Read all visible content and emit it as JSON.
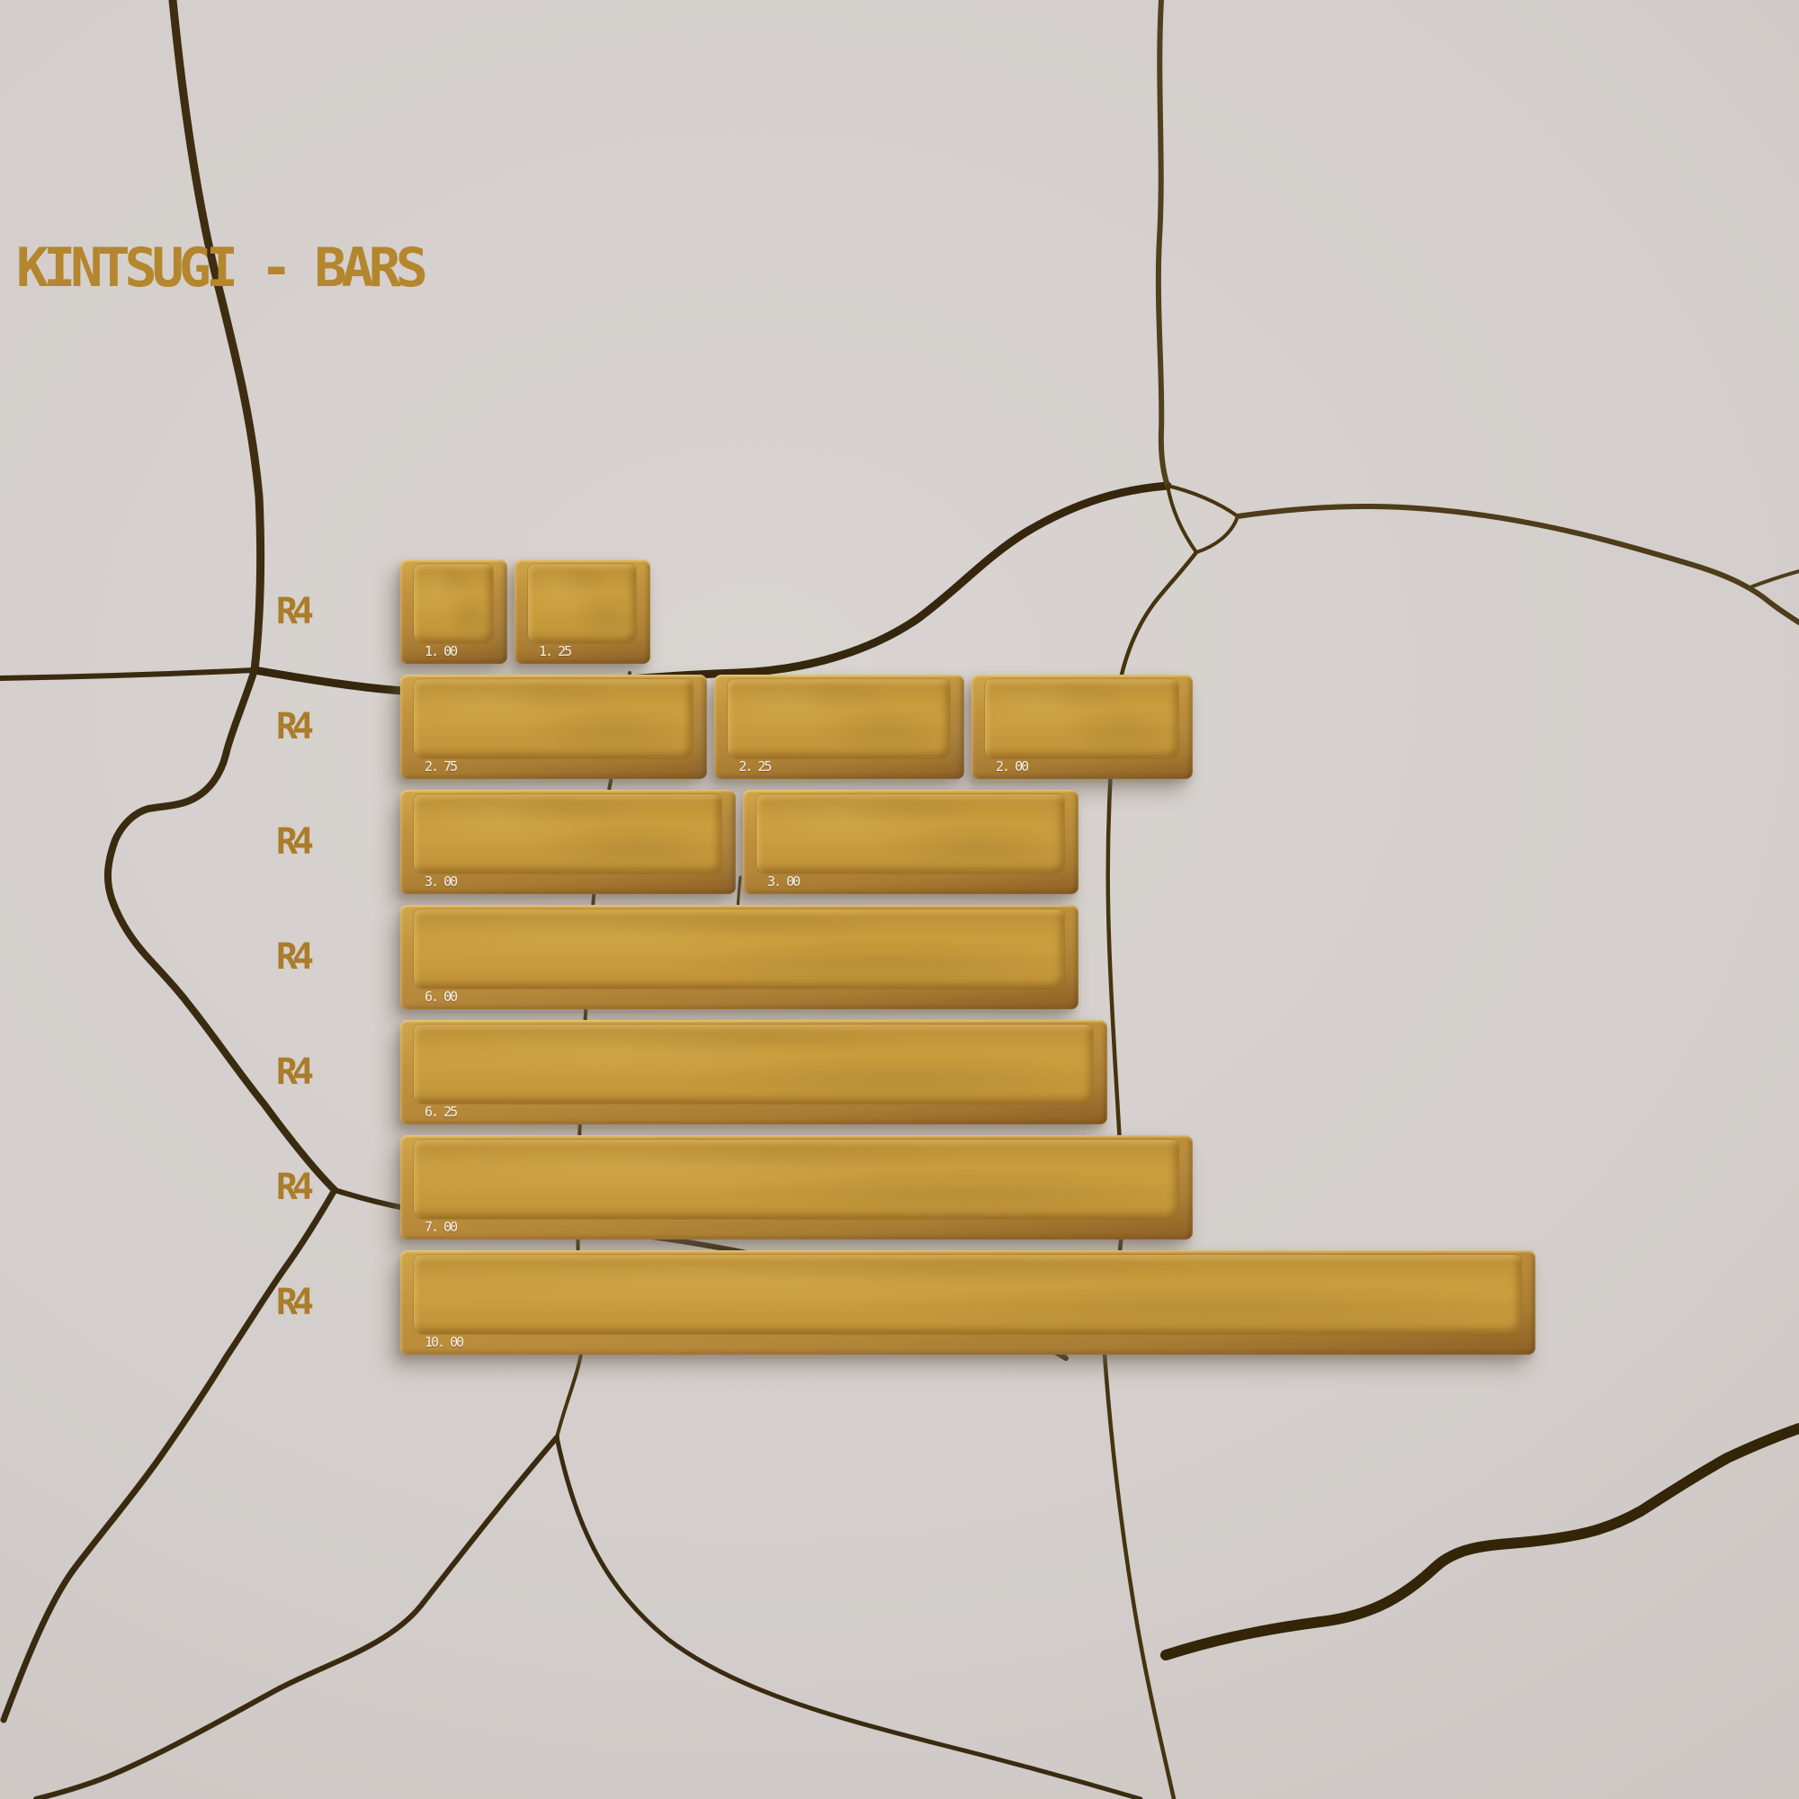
{
  "title": "KINTSUGI - BARS",
  "palette": {
    "gold_text": "#b4862d",
    "row_label_gold": "#aa7d2b",
    "keycap_gold": "#c99c3c",
    "keycap_shade": "#8c6026",
    "crack_brown": "#3a2b10",
    "background_gray": "#d3cecb",
    "size_label_white": "#f3efe8"
  },
  "rows": [
    {
      "row_label": "R4",
      "keys": [
        {
          "size_label": "1. 00",
          "units": 1
        },
        {
          "size_label": "1. 25",
          "units": 1.25
        }
      ]
    },
    {
      "row_label": "R4",
      "keys": [
        {
          "size_label": "2. 75",
          "units": 2.75
        },
        {
          "size_label": "2. 25",
          "units": 2.25
        },
        {
          "size_label": "2. 00",
          "units": 2
        }
      ]
    },
    {
      "row_label": "R4",
      "keys": [
        {
          "size_label": "3. 00",
          "units": 3
        },
        {
          "size_label": "3. 00",
          "units": 3
        }
      ]
    },
    {
      "row_label": "R4",
      "keys": [
        {
          "size_label": "6. 00",
          "units": 6
        }
      ]
    },
    {
      "row_label": "R4",
      "keys": [
        {
          "size_label": "6. 25",
          "units": 6.25
        }
      ]
    },
    {
      "row_label": "R4",
      "keys": [
        {
          "size_label": "7. 00",
          "units": 7
        }
      ]
    },
    {
      "row_label": "R4",
      "keys": [
        {
          "size_label": "10. 00",
          "units": 10
        }
      ]
    }
  ]
}
